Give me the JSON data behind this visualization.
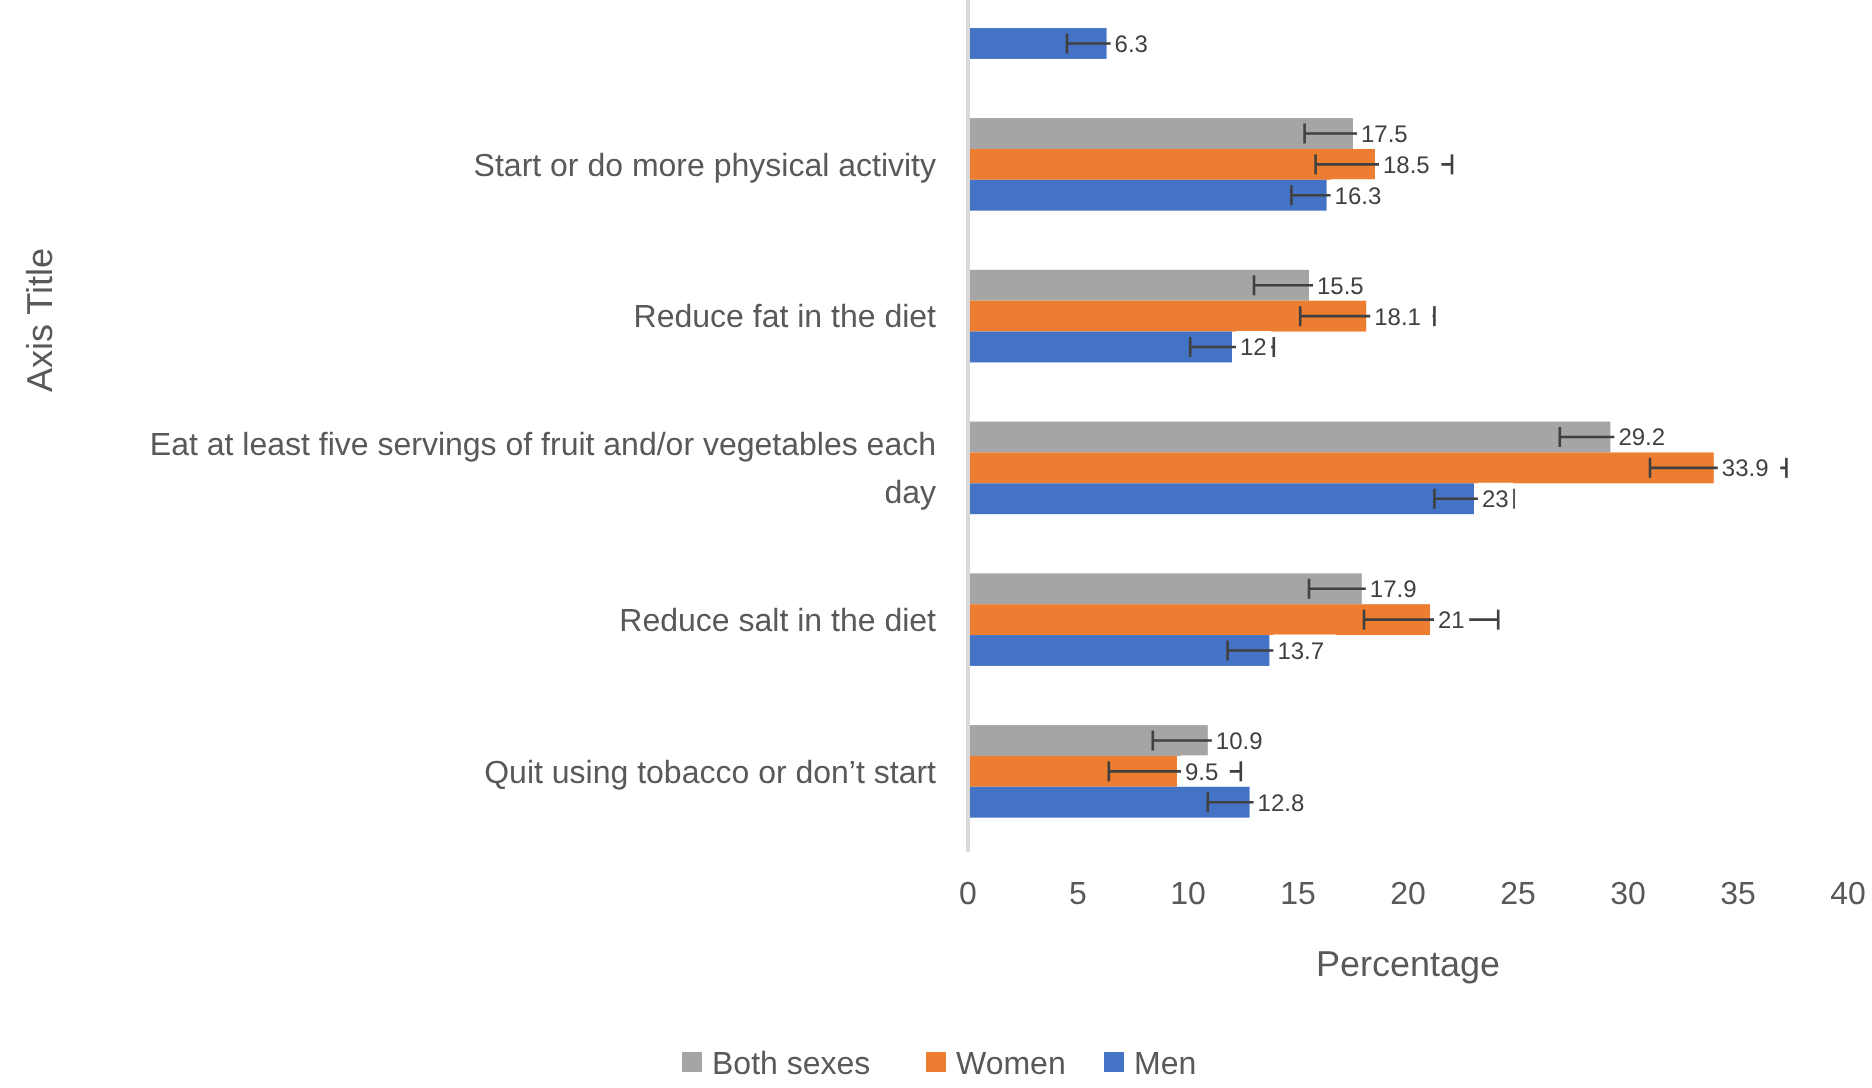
{
  "chart_data": {
    "type": "bar",
    "orientation": "horizontal",
    "ylabel": "Axis Title",
    "xlabel": "Percentage",
    "categories": [
      null,
      "Start or do more physical activity",
      "Reduce fat in the diet",
      "Eat at least five servings of fruit and/or vegetables each day",
      "Reduce salt in the diet",
      "Quit using tobacco or don’t start"
    ],
    "series": [
      {
        "name": "Both sexes",
        "color": "#a5a5a5",
        "values": [
          null,
          17.5,
          15.5,
          29.2,
          17.9,
          10.9
        ],
        "errors": [
          null,
          [
            15.3,
            20.0
          ],
          [
            13.0,
            17.8
          ],
          [
            26.9,
            31.5
          ],
          [
            15.5,
            19.5
          ],
          [
            8.4,
            13.4
          ]
        ]
      },
      {
        "name": "Women",
        "color": "#ed7d31",
        "values": [
          null,
          18.5,
          18.1,
          33.9,
          21,
          9.5
        ],
        "errors": [
          null,
          [
            15.8,
            22.0
          ],
          [
            15.1,
            21.2
          ],
          [
            31.0,
            37.2
          ],
          [
            18.0,
            24.1
          ],
          [
            6.4,
            12.4
          ]
        ]
      },
      {
        "name": "Men",
        "color": "#4472c4",
        "values": [
          6.3,
          16.3,
          12,
          23,
          13.7,
          12.8
        ],
        "errors": [
          [
            4.5,
            8.3
          ],
          [
            14.7,
            18.3
          ],
          [
            10.1,
            13.9
          ],
          [
            21.2,
            24.8
          ],
          [
            11.8,
            15.6
          ],
          [
            10.9,
            14.7
          ]
        ]
      }
    ],
    "xlim": [
      0,
      40
    ],
    "xticks": [
      0,
      5,
      10,
      15,
      20,
      25,
      30,
      35,
      40
    ],
    "data_labels": true,
    "grid": false,
    "legend": "bottom"
  }
}
